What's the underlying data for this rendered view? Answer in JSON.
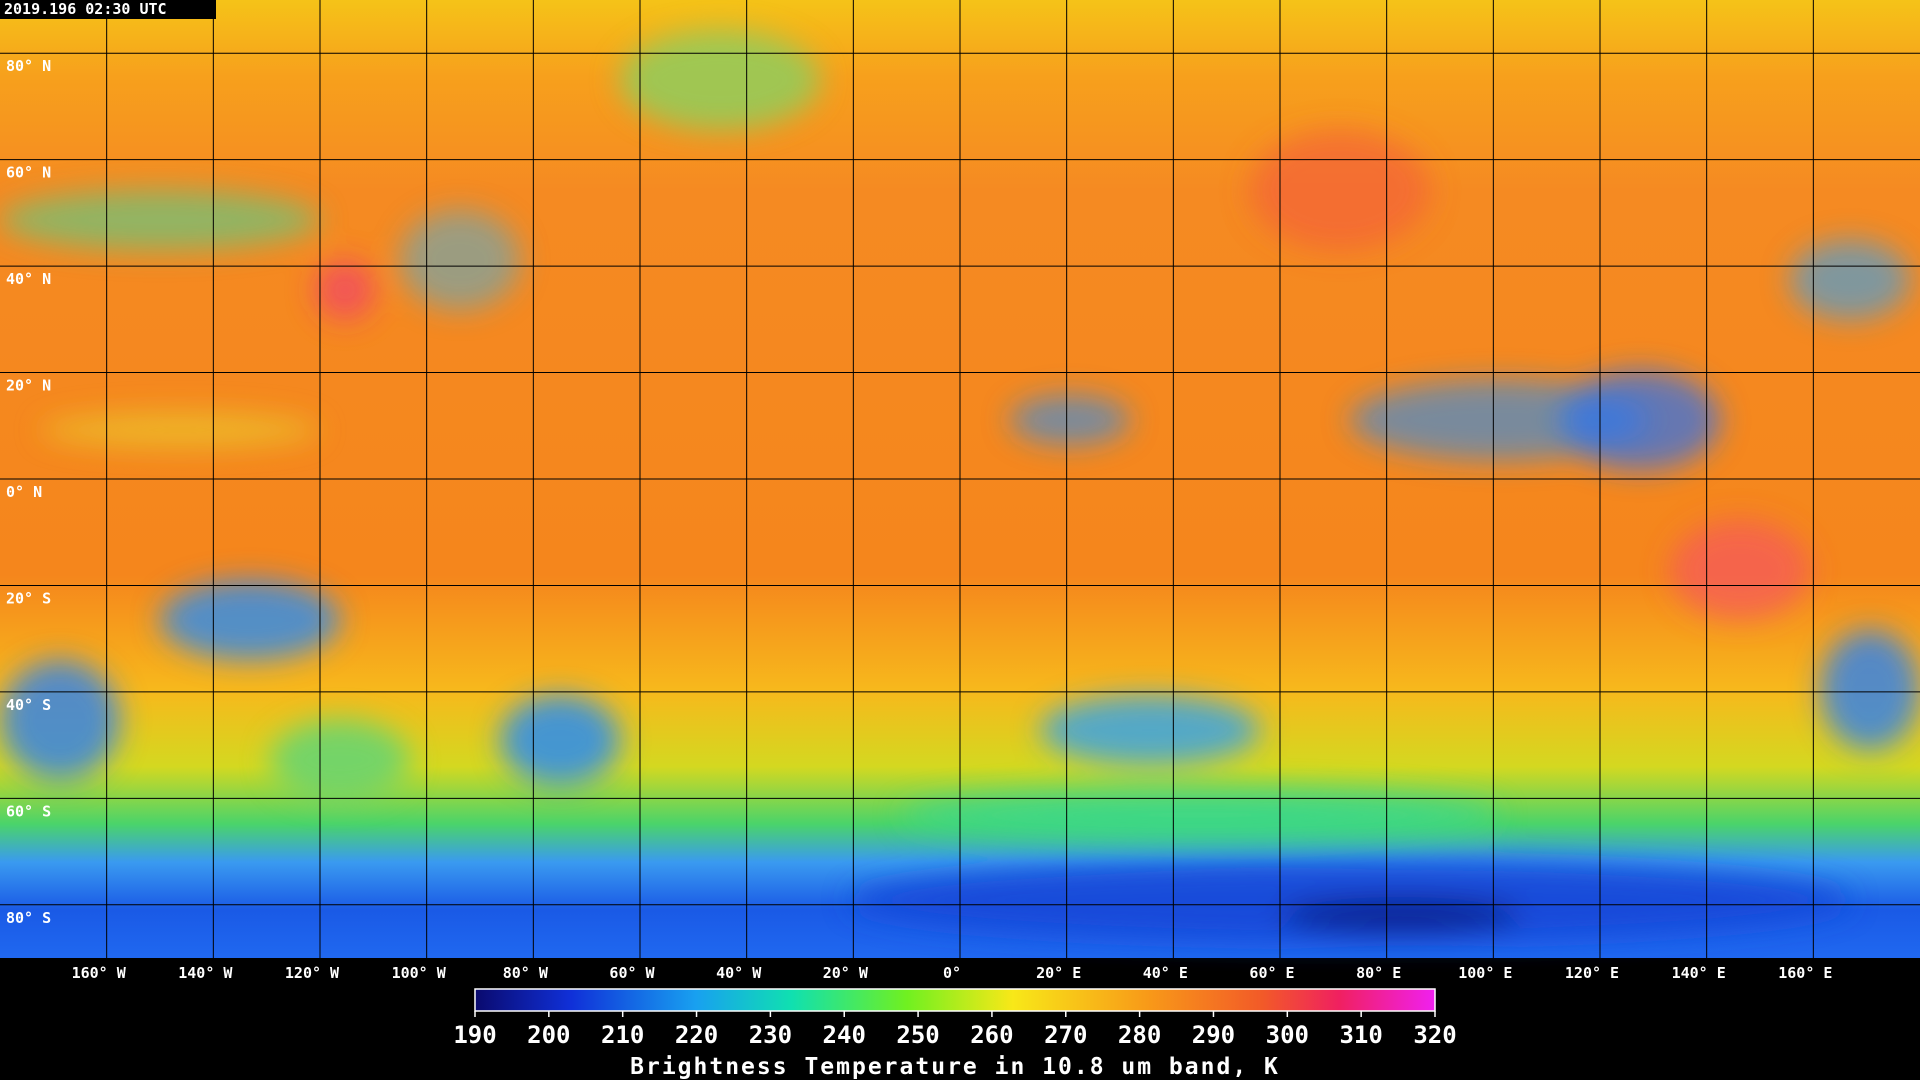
{
  "timestamp": "2019.196 02:30 UTC",
  "map": {
    "lat_lines": [
      {
        "value": 80,
        "label": "80° N"
      },
      {
        "value": 60,
        "label": "60° N"
      },
      {
        "value": 40,
        "label": "40° N"
      },
      {
        "value": 20,
        "label": "20° N"
      },
      {
        "value": 0,
        "label": "0° N"
      },
      {
        "value": -20,
        "label": "20° S"
      },
      {
        "value": -40,
        "label": "40° S"
      },
      {
        "value": -60,
        "label": "60° S"
      },
      {
        "value": -80,
        "label": "80° S"
      }
    ],
    "lon_lines": [
      {
        "value": -160,
        "label": "160° W"
      },
      {
        "value": -140,
        "label": "140° W"
      },
      {
        "value": -120,
        "label": "120° W"
      },
      {
        "value": -100,
        "label": "100° W"
      },
      {
        "value": -80,
        "label": "80° W"
      },
      {
        "value": -60,
        "label": "60° W"
      },
      {
        "value": -40,
        "label": "40° W"
      },
      {
        "value": -20,
        "label": "20° W"
      },
      {
        "value": 0,
        "label": "0°"
      },
      {
        "value": 20,
        "label": "20° E"
      },
      {
        "value": 40,
        "label": "40° E"
      },
      {
        "value": 60,
        "label": "60° E"
      },
      {
        "value": 80,
        "label": "80° E"
      },
      {
        "value": 100,
        "label": "100° E"
      },
      {
        "value": 120,
        "label": "120° E"
      },
      {
        "value": 140,
        "label": "140° E"
      },
      {
        "value": 160,
        "label": "160° E"
      }
    ]
  },
  "colorbar": {
    "range": [
      190,
      320
    ],
    "ticks": [
      190,
      200,
      210,
      220,
      230,
      240,
      250,
      260,
      270,
      280,
      290,
      300,
      310,
      320
    ],
    "title": "Brightness Temperature in 10.8 um band, K"
  }
}
